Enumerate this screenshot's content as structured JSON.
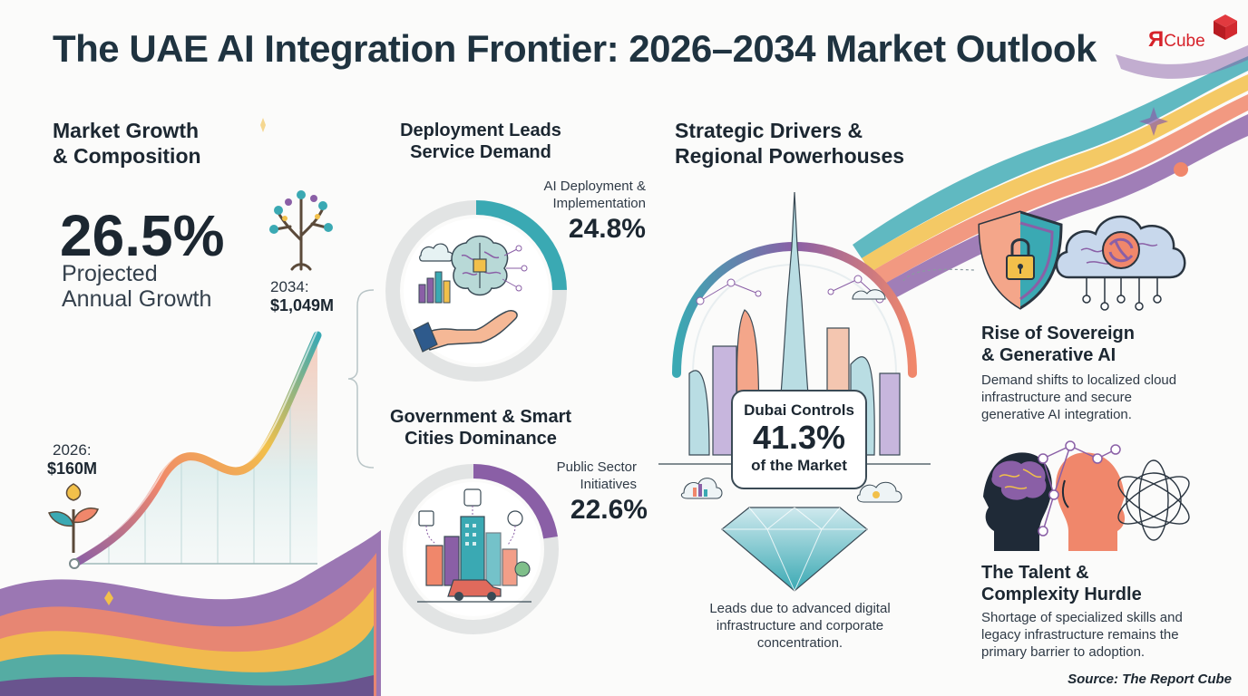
{
  "title": "The UAE AI Integration Frontier: 2026–2034 Market Outlook",
  "logo": {
    "glyph": "Я",
    "text": "Cube"
  },
  "market": {
    "heading_line1": "Market Growth",
    "heading_line2": "& Composition",
    "growth_value": "26.5%",
    "growth_label_line1": "Projected",
    "growth_label_line2": "Annual Growth",
    "start_year_label": "2026:",
    "start_value": "$160M",
    "end_year_label": "2034:",
    "end_value": "$1,049M"
  },
  "deployment": {
    "heading_line1": "Deployment Leads",
    "heading_line2": "Service Demand",
    "label_line1": "AI Deployment &",
    "label_line2": "Implementation",
    "value": "24.8%",
    "share": 0.248
  },
  "government": {
    "heading_line1": "Government & Smart",
    "heading_line2": "Cities Dominance",
    "label_line1": "Public Sector",
    "label_line2": "Initiatives",
    "value": "22.6%",
    "share": 0.226
  },
  "drivers": {
    "heading_line1": "Strategic Drivers &",
    "heading_line2": "Regional Powerhouses",
    "dubai_line1": "Dubai Controls",
    "dubai_value": "41.3%",
    "dubai_line3": "of the Market",
    "dubai_note_line1": "Leads due to advanced digital",
    "dubai_note_line2": "infrastructure and corporate",
    "dubai_note_line3": "concentration.",
    "sovereign_h1": "Rise of Sovereign",
    "sovereign_h2": "& Generative AI",
    "sovereign_p1": "Demand shifts to localized cloud",
    "sovereign_p2": "infrastructure and secure",
    "sovereign_p3": "generative AI integration.",
    "talent_h1": "The Talent &",
    "talent_h2": "Complexity Hurdle",
    "talent_p1": "Shortage of specialized skills and",
    "talent_p2": "legacy infrastructure remains the",
    "talent_p3": "primary barrier to adoption."
  },
  "source": "Source: The Report Cube",
  "colors": {
    "teal": "#3aa9b3",
    "purple": "#8a5fa6",
    "coral": "#f0876b",
    "gold": "#f2c04a",
    "dark": "#1c2731"
  },
  "icons": [
    "tree-icon",
    "sprout-icon",
    "brain-hand-icon",
    "smart-city-icon",
    "burj-skyline-icon",
    "shield-lock-icon",
    "cloud-network-icon",
    "head-brain-icon",
    "neural-network-icon",
    "diamond-icon"
  ]
}
